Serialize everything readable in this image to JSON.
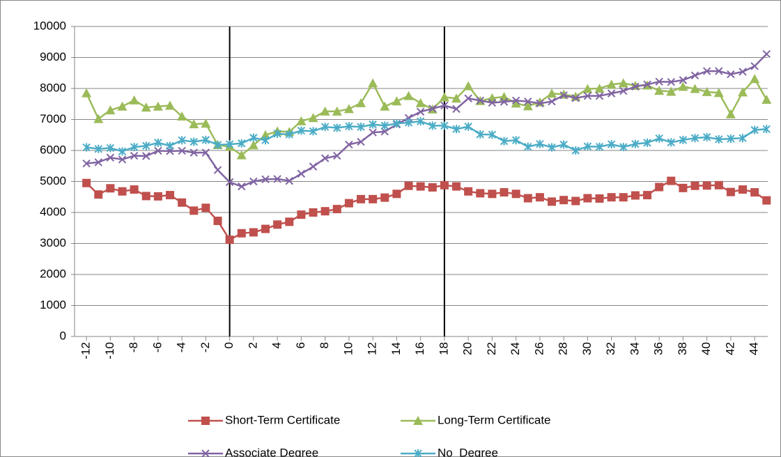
{
  "chart_data": {
    "type": "line",
    "x": [
      -12,
      -11,
      -10,
      -9,
      -8,
      -7,
      -6,
      -5,
      -4,
      -3,
      -2,
      -1,
      0,
      1,
      2,
      3,
      4,
      5,
      6,
      7,
      8,
      9,
      10,
      11,
      12,
      13,
      14,
      15,
      16,
      17,
      18,
      19,
      20,
      21,
      22,
      23,
      24,
      25,
      26,
      27,
      28,
      29,
      30,
      31,
      32,
      33,
      34,
      35,
      36,
      37,
      38,
      39,
      40,
      41,
      42,
      43,
      44,
      45
    ],
    "xlim": [
      -13,
      45.1
    ],
    "xticks": [
      -12,
      -10,
      -8,
      -6,
      -4,
      -2,
      0,
      2,
      4,
      6,
      8,
      10,
      12,
      14,
      16,
      18,
      20,
      22,
      24,
      26,
      28,
      30,
      32,
      34,
      36,
      38,
      40,
      42,
      44
    ],
    "ylim": [
      0,
      10000
    ],
    "yticks": [
      0,
      1000,
      2000,
      3000,
      4000,
      5000,
      6000,
      7000,
      8000,
      9000,
      10000
    ],
    "grid": true,
    "reference_lines": [
      0,
      18
    ],
    "series": [
      {
        "name": "Short-Term Certificate",
        "color": "#c0504d",
        "marker": "square",
        "values": [
          4950,
          4580,
          4780,
          4680,
          4740,
          4530,
          4520,
          4560,
          4320,
          4060,
          4150,
          3730,
          3120,
          3330,
          3360,
          3470,
          3610,
          3700,
          3930,
          4000,
          4040,
          4110,
          4300,
          4430,
          4430,
          4480,
          4600,
          4860,
          4840,
          4810,
          4880,
          4840,
          4680,
          4620,
          4600,
          4650,
          4600,
          4460,
          4490,
          4350,
          4400,
          4370,
          4460,
          4450,
          4490,
          4490,
          4550,
          4560,
          4820,
          5020,
          4790,
          4860,
          4870,
          4880,
          4660,
          4740,
          4650,
          4390
        ]
      },
      {
        "name": "Long-Term Certificate",
        "color": "#9bbb59",
        "marker": "triangle",
        "values": [
          7850,
          7020,
          7300,
          7420,
          7620,
          7390,
          7420,
          7450,
          7100,
          6850,
          6870,
          6180,
          6120,
          5850,
          6170,
          6500,
          6620,
          6600,
          6950,
          7050,
          7260,
          7260,
          7340,
          7530,
          8170,
          7420,
          7590,
          7760,
          7530,
          7330,
          7720,
          7680,
          8080,
          7600,
          7690,
          7730,
          7520,
          7430,
          7560,
          7840,
          7810,
          7740,
          7990,
          8000,
          8130,
          8170,
          8090,
          8100,
          7930,
          7900,
          8060,
          7990,
          7890,
          7860,
          7170,
          7880,
          8310,
          7640
        ]
      },
      {
        "name": "Associate Degree",
        "color": "#8064a2",
        "marker": "x",
        "values": [
          5580,
          5620,
          5770,
          5710,
          5830,
          5820,
          5990,
          5980,
          5990,
          5930,
          5930,
          5370,
          4980,
          4840,
          5000,
          5070,
          5080,
          5020,
          5250,
          5480,
          5750,
          5830,
          6190,
          6280,
          6580,
          6610,
          6840,
          7050,
          7250,
          7350,
          7450,
          7340,
          7680,
          7610,
          7540,
          7570,
          7610,
          7580,
          7520,
          7580,
          7780,
          7690,
          7760,
          7760,
          7840,
          7920,
          8060,
          8130,
          8220,
          8210,
          8270,
          8420,
          8560,
          8560,
          8460,
          8540,
          8720,
          9110
        ]
      },
      {
        "name": "No  Degree",
        "color": "#4bacc6",
        "marker": "star",
        "values": [
          6100,
          6050,
          6080,
          5970,
          6110,
          6150,
          6250,
          6150,
          6330,
          6280,
          6340,
          6180,
          6200,
          6230,
          6410,
          6330,
          6540,
          6520,
          6640,
          6620,
          6760,
          6730,
          6780,
          6760,
          6840,
          6800,
          6870,
          6900,
          6940,
          6800,
          6800,
          6690,
          6770,
          6520,
          6510,
          6300,
          6330,
          6120,
          6210,
          6100,
          6190,
          6000,
          6130,
          6120,
          6200,
          6110,
          6210,
          6250,
          6390,
          6260,
          6340,
          6400,
          6430,
          6360,
          6380,
          6400,
          6660,
          6690
        ]
      }
    ]
  }
}
